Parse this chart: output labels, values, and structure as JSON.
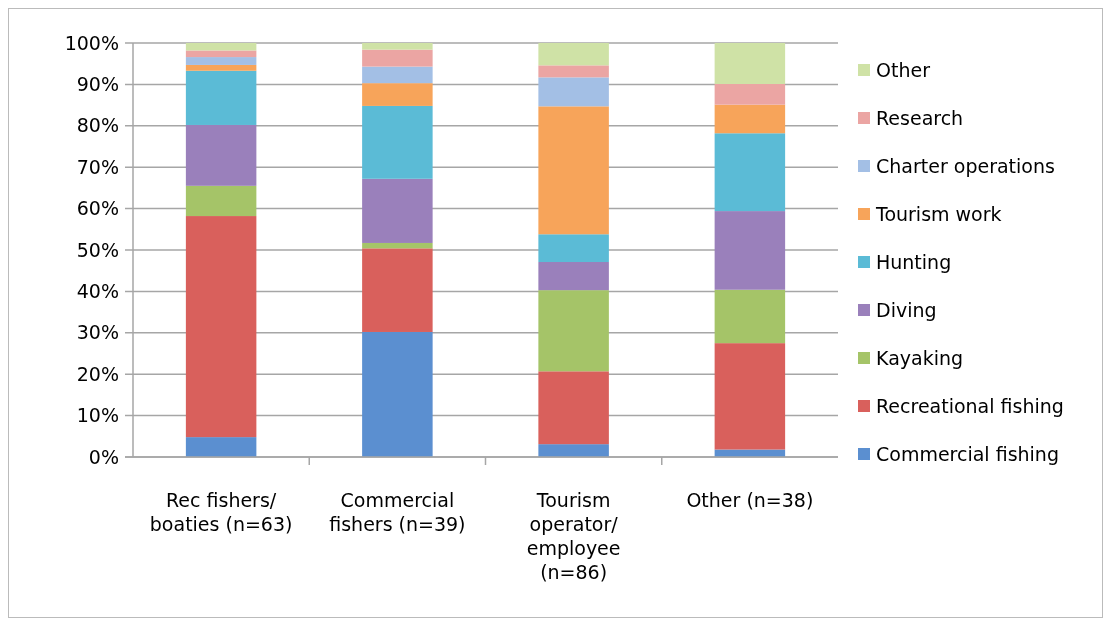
{
  "chart_data": {
    "type": "bar",
    "stacked": true,
    "categories": [
      "Rec fishers/ boaties (n=63)",
      "Commercial fishers (n=39)",
      "Tourism operator/ employee (n=86)",
      "Other (n=38)"
    ],
    "series": [
      {
        "name": "Commercial fishing",
        "color": "#5b8fd0",
        "values": [
          4.8,
          30.2,
          3.1,
          1.8
        ]
      },
      {
        "name": "Recreational fishing",
        "color": "#d9605c",
        "values": [
          53.4,
          20.2,
          17.6,
          25.7
        ]
      },
      {
        "name": "Kayaking",
        "color": "#a5c468",
        "values": [
          7.3,
          1.3,
          19.6,
          12.9
        ]
      },
      {
        "name": "Diving",
        "color": "#9a80bb",
        "values": [
          14.7,
          15.5,
          6.8,
          19.0
        ]
      },
      {
        "name": "Hunting",
        "color": "#5bbbd6",
        "values": [
          13.1,
          17.6,
          6.7,
          18.8
        ]
      },
      {
        "name": "Tourism work",
        "color": "#f7a45a",
        "values": [
          1.4,
          5.5,
          30.9,
          6.9
        ]
      },
      {
        "name": "Charter operations",
        "color": "#a3bfe5",
        "values": [
          1.9,
          4.0,
          7.0,
          0
        ]
      },
      {
        "name": "Research",
        "color": "#eba5a3",
        "values": [
          1.6,
          4.1,
          2.9,
          5.0
        ]
      },
      {
        "name": "Other",
        "color": "#cfe2a6",
        "values": [
          1.8,
          1.6,
          5.4,
          9.9
        ]
      }
    ],
    "ylim": [
      0,
      100
    ],
    "yticks": [
      {
        "value": 0,
        "label": "0%"
      },
      {
        "value": 10,
        "label": "10%"
      },
      {
        "value": 20,
        "label": "20%"
      },
      {
        "value": 30,
        "label": "30%"
      },
      {
        "value": 40,
        "label": "40%"
      },
      {
        "value": 50,
        "label": "50%"
      },
      {
        "value": 60,
        "label": "60%"
      },
      {
        "value": 70,
        "label": "70%"
      },
      {
        "value": 80,
        "label": "80%"
      },
      {
        "value": 90,
        "label": "90%"
      },
      {
        "value": 100,
        "label": "100%"
      }
    ],
    "grid": "y",
    "legend": "right"
  }
}
